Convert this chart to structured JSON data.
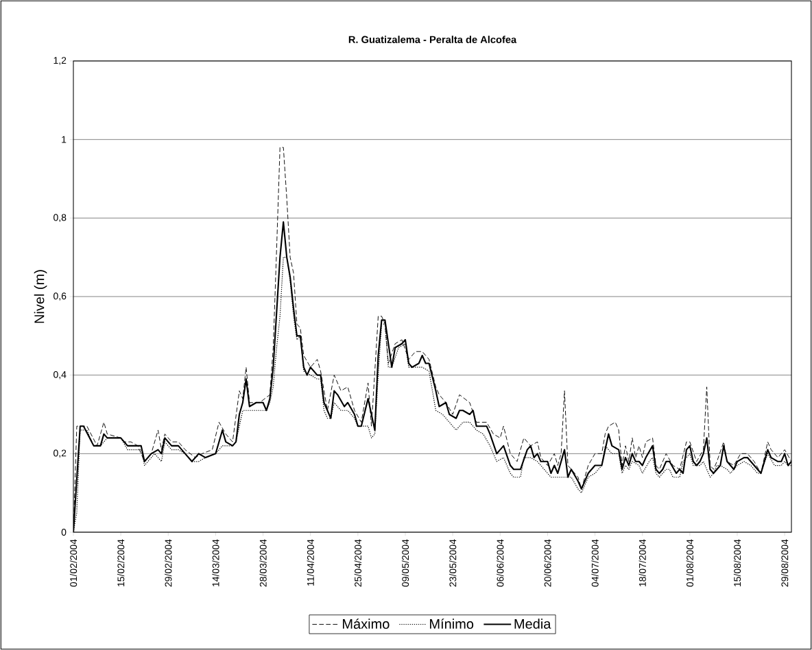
{
  "chart_data": {
    "type": "line",
    "title": "R. Guatizalema - Peralta  de Alcofea",
    "ylabel": "Nivel (m)",
    "xlim": [
      "2004-02-01",
      "2004-08-31"
    ],
    "ylim": [
      0,
      1.2
    ],
    "xticks": [
      {
        "value": "2004-02-01",
        "label": "01/02/2004"
      },
      {
        "value": "2004-02-15",
        "label": "15/02/2004"
      },
      {
        "value": "2004-02-29",
        "label": "29/02/2004"
      },
      {
        "value": "2004-03-14",
        "label": "14/03/2004"
      },
      {
        "value": "2004-03-28",
        "label": "28/03/2004"
      },
      {
        "value": "2004-04-11",
        "label": "11/04/2004"
      },
      {
        "value": "2004-04-25",
        "label": "25/04/2004"
      },
      {
        "value": "2004-05-09",
        "label": "09/05/2004"
      },
      {
        "value": "2004-05-23",
        "label": "23/05/2004"
      },
      {
        "value": "2004-06-06",
        "label": "06/06/2004"
      },
      {
        "value": "2004-06-20",
        "label": "20/06/2004"
      },
      {
        "value": "2004-07-04",
        "label": "04/07/2004"
      },
      {
        "value": "2004-07-18",
        "label": "18/07/2004"
      },
      {
        "value": "2004-08-01",
        "label": "01/08/2004"
      },
      {
        "value": "2004-08-15",
        "label": "15/08/2004"
      },
      {
        "value": "2004-08-29",
        "label": "29/08/2004"
      }
    ],
    "yticks": [
      0,
      {
        "value": 0.2,
        "label": "0,2"
      },
      {
        "value": 0.4,
        "label": "0,4"
      },
      {
        "value": 0.6,
        "label": "0,6"
      },
      {
        "value": 0.8,
        "label": "0,8"
      },
      1,
      {
        "value": 1.2,
        "label": "1,2"
      }
    ],
    "grid": "y",
    "legend": "bottom",
    "series": [
      {
        "name": "Máximo",
        "color": "#000000",
        "line_style": "dashed",
        "x": [
          "2004-02-01",
          "2004-02-02",
          "2004-02-05",
          "2004-02-08",
          "2004-02-10",
          "2004-02-11",
          "2004-02-15",
          "2004-02-16",
          "2004-02-18",
          "2004-02-20",
          "2004-02-22",
          "2004-02-24",
          "2004-02-26",
          "2004-02-27",
          "2004-02-28",
          "2004-03-01",
          "2004-03-03",
          "2004-03-05",
          "2004-03-08",
          "2004-03-10",
          "2004-03-13",
          "2004-03-15",
          "2004-03-17",
          "2004-03-19",
          "2004-03-21",
          "2004-03-22",
          "2004-03-23",
          "2004-03-24",
          "2004-03-27",
          "2004-03-30",
          "2004-03-31",
          "2004-04-01",
          "2004-04-02",
          "2004-04-03",
          "2004-04-04",
          "2004-04-05",
          "2004-04-06",
          "2004-04-07",
          "2004-04-08",
          "2004-04-09",
          "2004-04-11",
          "2004-04-13",
          "2004-04-14",
          "2004-04-16",
          "2004-04-18",
          "2004-04-20",
          "2004-04-22",
          "2004-04-24",
          "2004-04-26",
          "2004-04-28",
          "2004-04-29",
          "2004-05-01",
          "2004-05-02",
          "2004-05-03",
          "2004-05-04",
          "2004-05-06",
          "2004-05-08",
          "2004-05-10",
          "2004-05-12",
          "2004-05-14",
          "2004-05-16",
          "2004-05-18",
          "2004-05-19",
          "2004-05-21",
          "2004-05-23",
          "2004-05-25",
          "2004-05-28",
          "2004-05-30",
          "2004-06-02",
          "2004-06-04",
          "2004-06-06",
          "2004-06-07",
          "2004-06-09",
          "2004-06-11",
          "2004-06-13",
          "2004-06-15",
          "2004-06-17",
          "2004-06-18",
          "2004-06-20",
          "2004-06-22",
          "2004-06-23",
          "2004-06-24",
          "2004-06-25",
          "2004-06-26",
          "2004-06-27",
          "2004-06-29",
          "2004-06-30",
          "2004-07-02",
          "2004-07-04",
          "2004-07-06",
          "2004-07-07",
          "2004-07-08",
          "2004-07-10",
          "2004-07-11",
          "2004-07-12",
          "2004-07-13",
          "2004-07-14",
          "2004-07-15",
          "2004-07-16",
          "2004-07-17",
          "2004-07-18",
          "2004-07-19",
          "2004-07-21",
          "2004-07-22",
          "2004-07-23",
          "2004-07-25",
          "2004-07-27",
          "2004-07-29",
          "2004-07-31",
          "2004-08-01",
          "2004-08-03",
          "2004-08-05",
          "2004-08-06",
          "2004-08-07",
          "2004-08-08",
          "2004-08-09",
          "2004-08-11",
          "2004-08-12",
          "2004-08-14",
          "2004-08-16",
          "2004-08-18",
          "2004-08-20",
          "2004-08-22",
          "2004-08-24",
          "2004-08-25",
          "2004-08-27",
          "2004-08-29",
          "2004-08-31"
        ],
        "values": [
          0,
          0.27,
          0.27,
          0.22,
          0.28,
          0.25,
          0.24,
          0.23,
          0.23,
          0.22,
          0.18,
          0.2,
          0.26,
          0.21,
          0.25,
          0.23,
          0.23,
          0.21,
          0.19,
          0.2,
          0.21,
          0.28,
          0.25,
          0.23,
          0.36,
          0.34,
          0.42,
          0.33,
          0.33,
          0.35,
          0.47,
          0.72,
          0.98,
          0.98,
          0.85,
          0.7,
          0.66,
          0.53,
          0.52,
          0.45,
          0.42,
          0.44,
          0.41,
          0.31,
          0.4,
          0.36,
          0.37,
          0.31,
          0.28,
          0.38,
          0.27,
          0.55,
          0.55,
          0.53,
          0.43,
          0.48,
          0.49,
          0.44,
          0.46,
          0.46,
          0.44,
          0.37,
          0.35,
          0.33,
          0.3,
          0.35,
          0.33,
          0.28,
          0.28,
          0.25,
          0.24,
          0.27,
          0.2,
          0.18,
          0.24,
          0.22,
          0.23,
          0.19,
          0.17,
          0.2,
          0.17,
          0.2,
          0.36,
          0.17,
          0.16,
          0.14,
          0.11,
          0.17,
          0.2,
          0.2,
          0.25,
          0.27,
          0.28,
          0.26,
          0.17,
          0.22,
          0.18,
          0.24,
          0.19,
          0.22,
          0.19,
          0.23,
          0.24,
          0.17,
          0.16,
          0.2,
          0.17,
          0.16,
          0.23,
          0.23,
          0.18,
          0.21,
          0.37,
          0.17,
          0.16,
          0.18,
          0.23,
          0.18,
          0.17,
          0.2,
          0.2,
          0.18,
          0.15,
          0.23,
          0.21,
          0.19,
          0.21,
          0.18
        ]
      },
      {
        "name": "Mínimo",
        "color": "#000000",
        "line_style": "dotted",
        "x": [
          "2004-02-01",
          "2004-02-02",
          "2004-02-03",
          "2004-02-05",
          "2004-02-07",
          "2004-02-09",
          "2004-02-11",
          "2004-02-15",
          "2004-02-17",
          "2004-02-21",
          "2004-02-22",
          "2004-02-23",
          "2004-02-25",
          "2004-02-27",
          "2004-02-28",
          "2004-03-01",
          "2004-03-03",
          "2004-03-05",
          "2004-03-07",
          "2004-03-09",
          "2004-03-11",
          "2004-03-14",
          "2004-03-16",
          "2004-03-19",
          "2004-03-20",
          "2004-03-22",
          "2004-03-24",
          "2004-03-27",
          "2004-03-29",
          "2004-03-30",
          "2004-03-31",
          "2004-04-01",
          "2004-04-02",
          "2004-04-03",
          "2004-04-04",
          "2004-04-05",
          "2004-04-06",
          "2004-04-07",
          "2004-04-08",
          "2004-04-09",
          "2004-04-11",
          "2004-04-13",
          "2004-04-14",
          "2004-04-15",
          "2004-04-16",
          "2004-04-17",
          "2004-04-18",
          "2004-04-20",
          "2004-04-22",
          "2004-04-24",
          "2004-04-25",
          "2004-04-27",
          "2004-04-28",
          "2004-04-29",
          "2004-04-30",
          "2004-05-01",
          "2004-05-02",
          "2004-05-03",
          "2004-05-04",
          "2004-05-05",
          "2004-05-07",
          "2004-05-09",
          "2004-05-10",
          "2004-05-12",
          "2004-05-14",
          "2004-05-16",
          "2004-05-18",
          "2004-05-20",
          "2004-05-22",
          "2004-05-24",
          "2004-05-26",
          "2004-05-28",
          "2004-05-30",
          "2004-06-01",
          "2004-06-03",
          "2004-06-05",
          "2004-06-07",
          "2004-06-09",
          "2004-06-10",
          "2004-06-12",
          "2004-06-13",
          "2004-06-15",
          "2004-06-17",
          "2004-06-19",
          "2004-06-21",
          "2004-06-23",
          "2004-06-25",
          "2004-06-27",
          "2004-06-29",
          "2004-06-30",
          "2004-07-02",
          "2004-07-04",
          "2004-07-06",
          "2004-07-07",
          "2004-07-09",
          "2004-07-11",
          "2004-07-12",
          "2004-07-13",
          "2004-07-14",
          "2004-07-15",
          "2004-07-17",
          "2004-07-18",
          "2004-07-20",
          "2004-07-21",
          "2004-07-22",
          "2004-07-23",
          "2004-07-25",
          "2004-07-26",
          "2004-07-27",
          "2004-07-29",
          "2004-07-30",
          "2004-08-01",
          "2004-08-02",
          "2004-08-04",
          "2004-08-05",
          "2004-08-06",
          "2004-08-07",
          "2004-08-08",
          "2004-08-09",
          "2004-08-10",
          "2004-08-12",
          "2004-08-13",
          "2004-08-15",
          "2004-08-17",
          "2004-08-19",
          "2004-08-21",
          "2004-08-22",
          "2004-08-24",
          "2004-08-26",
          "2004-08-28",
          "2004-08-29",
          "2004-08-30",
          "2004-08-31"
        ],
        "values": [
          0,
          0.05,
          0.26,
          0.26,
          0.22,
          0.22,
          0.24,
          0.24,
          0.21,
          0.21,
          0.17,
          0.18,
          0.2,
          0.18,
          0.23,
          0.21,
          0.21,
          0.2,
          0.18,
          0.18,
          0.19,
          0.2,
          0.22,
          0.22,
          0.23,
          0.31,
          0.31,
          0.31,
          0.31,
          0.33,
          0.37,
          0.47,
          0.55,
          0.7,
          0.7,
          0.64,
          0.55,
          0.49,
          0.5,
          0.41,
          0.4,
          0.39,
          0.39,
          0.31,
          0.29,
          0.29,
          0.33,
          0.31,
          0.31,
          0.29,
          0.27,
          0.27,
          0.27,
          0.24,
          0.25,
          0.4,
          0.53,
          0.53,
          0.42,
          0.42,
          0.47,
          0.48,
          0.42,
          0.42,
          0.42,
          0.41,
          0.31,
          0.3,
          0.28,
          0.26,
          0.28,
          0.28,
          0.26,
          0.25,
          0.22,
          0.18,
          0.19,
          0.15,
          0.14,
          0.14,
          0.19,
          0.19,
          0.18,
          0.16,
          0.14,
          0.14,
          0.14,
          0.14,
          0.11,
          0.1,
          0.14,
          0.15,
          0.17,
          0.22,
          0.2,
          0.2,
          0.15,
          0.17,
          0.16,
          0.18,
          0.17,
          0.15,
          0.18,
          0.19,
          0.15,
          0.14,
          0.16,
          0.16,
          0.14,
          0.14,
          0.18,
          0.2,
          0.17,
          0.17,
          0.18,
          0.16,
          0.14,
          0.15,
          0.17,
          0.17,
          0.16,
          0.15,
          0.17,
          0.18,
          0.17,
          0.15,
          0.15,
          0.2,
          0.17,
          0.17,
          0.18,
          0.17,
          0.17
        ]
      },
      {
        "name": "Media",
        "color": "#000000",
        "line_style": "solid",
        "x": [
          "2004-02-01",
          "2004-02-03",
          "2004-02-04",
          "2004-02-07",
          "2004-02-09",
          "2004-02-10",
          "2004-02-11",
          "2004-02-15",
          "2004-02-17",
          "2004-02-21",
          "2004-02-22",
          "2004-02-24",
          "2004-02-26",
          "2004-02-27",
          "2004-02-28",
          "2004-03-01",
          "2004-03-03",
          "2004-03-05",
          "2004-03-07",
          "2004-03-09",
          "2004-03-11",
          "2004-03-14",
          "2004-03-16",
          "2004-03-17",
          "2004-03-19",
          "2004-03-20",
          "2004-03-21",
          "2004-03-22",
          "2004-03-23",
          "2004-03-24",
          "2004-03-26",
          "2004-03-28",
          "2004-03-29",
          "2004-03-30",
          "2004-03-31",
          "2004-04-01",
          "2004-04-02",
          "2004-04-03",
          "2004-04-04",
          "2004-04-05",
          "2004-04-06",
          "2004-04-07",
          "2004-04-08",
          "2004-04-09",
          "2004-04-10",
          "2004-04-11",
          "2004-04-13",
          "2004-04-14",
          "2004-04-15",
          "2004-04-17",
          "2004-04-18",
          "2004-04-19",
          "2004-04-21",
          "2004-04-22",
          "2004-04-24",
          "2004-04-25",
          "2004-04-26",
          "2004-04-28",
          "2004-04-30",
          "2004-05-01",
          "2004-05-02",
          "2004-05-03",
          "2004-05-05",
          "2004-05-06",
          "2004-05-08",
          "2004-05-09",
          "2004-05-10",
          "2004-05-11",
          "2004-05-13",
          "2004-05-14",
          "2004-05-15",
          "2004-05-16",
          "2004-05-18",
          "2004-05-19",
          "2004-05-21",
          "2004-05-22",
          "2004-05-24",
          "2004-05-25",
          "2004-05-26",
          "2004-05-28",
          "2004-05-29",
          "2004-05-30",
          "2004-06-02",
          "2004-06-03",
          "2004-06-05",
          "2004-06-07",
          "2004-06-09",
          "2004-06-10",
          "2004-06-12",
          "2004-06-14",
          "2004-06-15",
          "2004-06-16",
          "2004-06-17",
          "2004-06-18",
          "2004-06-20",
          "2004-06-21",
          "2004-06-22",
          "2004-06-23",
          "2004-06-25",
          "2004-06-26",
          "2004-06-27",
          "2004-06-29",
          "2004-06-30",
          "2004-07-02",
          "2004-07-04",
          "2004-07-06",
          "2004-07-08",
          "2004-07-09",
          "2004-07-11",
          "2004-07-12",
          "2004-07-13",
          "2004-07-14",
          "2004-07-15",
          "2004-07-16",
          "2004-07-17",
          "2004-07-18",
          "2004-07-19",
          "2004-07-21",
          "2004-07-22",
          "2004-07-23",
          "2004-07-24",
          "2004-07-25",
          "2004-07-26",
          "2004-07-28",
          "2004-07-29",
          "2004-07-30",
          "2004-07-31",
          "2004-08-01",
          "2004-08-02",
          "2004-08-03",
          "2004-08-04",
          "2004-08-05",
          "2004-08-06",
          "2004-08-07",
          "2004-08-08",
          "2004-08-09",
          "2004-08-10",
          "2004-08-11",
          "2004-08-12",
          "2004-08-13",
          "2004-08-14",
          "2004-08-15",
          "2004-08-17",
          "2004-08-18",
          "2004-08-20",
          "2004-08-22",
          "2004-08-24",
          "2004-08-25",
          "2004-08-27",
          "2004-08-28",
          "2004-08-29",
          "2004-08-30",
          "2004-08-31"
        ],
        "values": [
          0,
          0.27,
          0.27,
          0.22,
          0.22,
          0.25,
          0.24,
          0.24,
          0.22,
          0.22,
          0.18,
          0.2,
          0.21,
          0.2,
          0.24,
          0.22,
          0.22,
          0.2,
          0.18,
          0.2,
          0.19,
          0.2,
          0.26,
          0.23,
          0.22,
          0.23,
          0.3,
          0.33,
          0.39,
          0.32,
          0.33,
          0.33,
          0.31,
          0.34,
          0.42,
          0.56,
          0.7,
          0.79,
          0.7,
          0.65,
          0.57,
          0.5,
          0.5,
          0.42,
          0.4,
          0.42,
          0.4,
          0.4,
          0.33,
          0.29,
          0.36,
          0.35,
          0.32,
          0.33,
          0.3,
          0.27,
          0.27,
          0.34,
          0.26,
          0.45,
          0.54,
          0.54,
          0.42,
          0.47,
          0.48,
          0.49,
          0.43,
          0.42,
          0.43,
          0.45,
          0.43,
          0.43,
          0.36,
          0.32,
          0.33,
          0.3,
          0.29,
          0.31,
          0.31,
          0.3,
          0.31,
          0.27,
          0.27,
          0.25,
          0.2,
          0.22,
          0.17,
          0.16,
          0.16,
          0.21,
          0.22,
          0.19,
          0.2,
          0.18,
          0.18,
          0.15,
          0.17,
          0.15,
          0.21,
          0.14,
          0.16,
          0.13,
          0.11,
          0.15,
          0.17,
          0.17,
          0.25,
          0.22,
          0.21,
          0.16,
          0.19,
          0.17,
          0.2,
          0.18,
          0.18,
          0.17,
          0.19,
          0.22,
          0.16,
          0.15,
          0.16,
          0.18,
          0.18,
          0.15,
          0.16,
          0.15,
          0.21,
          0.22,
          0.18,
          0.17,
          0.18,
          0.2,
          0.24,
          0.16,
          0.15,
          0.16,
          0.17,
          0.22,
          0.18,
          0.17,
          0.16,
          0.18,
          0.19,
          0.19,
          0.17,
          0.15,
          0.21,
          0.19,
          0.18,
          0.18,
          0.2,
          0.17,
          0.18
        ]
      }
    ]
  }
}
